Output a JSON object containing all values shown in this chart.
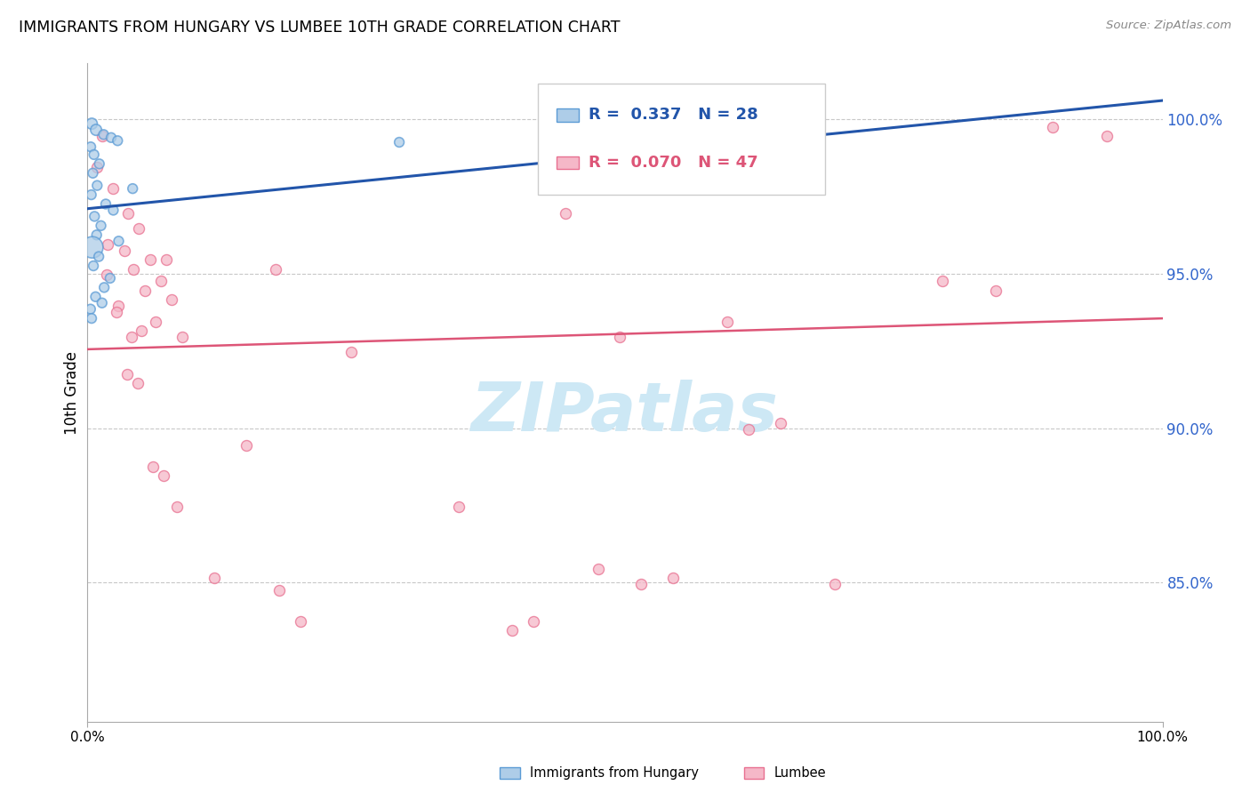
{
  "title": "IMMIGRANTS FROM HUNGARY VS LUMBEE 10TH GRADE CORRELATION CHART",
  "source": "Source: ZipAtlas.com",
  "ylabel": "10th Grade",
  "x_min": 0.0,
  "x_max": 100.0,
  "y_min": 80.5,
  "y_max": 101.8,
  "yticks": [
    85.0,
    90.0,
    95.0,
    100.0
  ],
  "legend_blue_r": "R =  0.337",
  "legend_blue_n": "N = 28",
  "legend_pink_r": "R =  0.070",
  "legend_pink_n": "N = 47",
  "blue_color": "#aecde8",
  "pink_color": "#f5b8c8",
  "blue_edge_color": "#5b9bd5",
  "pink_edge_color": "#e87090",
  "blue_line_color": "#2255aa",
  "pink_line_color": "#dd5577",
  "grid_color": "#c8c8c8",
  "right_tick_color": "#3366cc",
  "watermark_color": "#cde8f5",
  "blue_points_x": [
    0.4,
    0.8,
    1.5,
    2.2,
    2.8,
    0.3,
    0.6,
    1.1,
    0.5,
    0.9,
    0.35,
    1.7,
    2.4,
    0.65,
    1.25,
    0.85,
    2.9,
    0.45,
    1.05,
    0.55,
    2.1,
    1.55,
    0.75,
    4.2,
    0.28,
    0.38,
    1.35,
    29.0
  ],
  "blue_points_y": [
    99.85,
    99.65,
    99.5,
    99.4,
    99.3,
    99.1,
    98.85,
    98.55,
    98.25,
    97.85,
    97.55,
    97.25,
    97.05,
    96.85,
    96.55,
    96.25,
    96.05,
    95.85,
    95.55,
    95.25,
    94.85,
    94.55,
    94.25,
    97.75,
    93.85,
    93.55,
    94.05,
    99.25
  ],
  "blue_sizes": [
    80,
    80,
    60,
    60,
    60,
    60,
    60,
    60,
    60,
    60,
    60,
    60,
    60,
    60,
    60,
    60,
    60,
    300,
    60,
    60,
    60,
    60,
    60,
    60,
    60,
    60,
    60,
    60
  ],
  "pink_points_x": [
    1.4,
    0.9,
    2.4,
    3.8,
    4.8,
    1.9,
    3.4,
    5.8,
    4.3,
    1.75,
    6.8,
    5.3,
    7.8,
    2.9,
    2.7,
    6.3,
    5.0,
    8.8,
    4.1,
    7.3,
    17.5,
    44.5,
    59.5,
    61.5,
    64.5,
    49.5,
    79.5,
    84.5,
    89.8,
    94.8,
    3.7,
    4.7,
    6.1,
    7.1,
    8.3,
    11.8,
    17.8,
    19.8,
    34.5,
    39.5,
    41.5,
    47.5,
    51.5,
    54.5,
    69.5,
    14.8,
    24.5
  ],
  "pink_points_y": [
    99.45,
    98.45,
    97.75,
    96.95,
    96.45,
    95.95,
    95.75,
    95.45,
    95.15,
    94.95,
    94.75,
    94.45,
    94.15,
    93.95,
    93.75,
    93.45,
    93.15,
    92.95,
    92.95,
    95.45,
    95.15,
    96.95,
    93.45,
    89.95,
    90.15,
    92.95,
    94.75,
    94.45,
    99.75,
    99.45,
    91.75,
    91.45,
    88.75,
    88.45,
    87.45,
    85.15,
    84.75,
    83.75,
    87.45,
    83.45,
    83.75,
    85.45,
    84.95,
    85.15,
    84.95,
    89.45,
    92.45
  ],
  "blue_trend_x": [
    0.0,
    100.0
  ],
  "blue_trend_y": [
    97.1,
    100.6
  ],
  "pink_trend_x": [
    0.0,
    100.0
  ],
  "pink_trend_y": [
    92.55,
    93.55
  ]
}
